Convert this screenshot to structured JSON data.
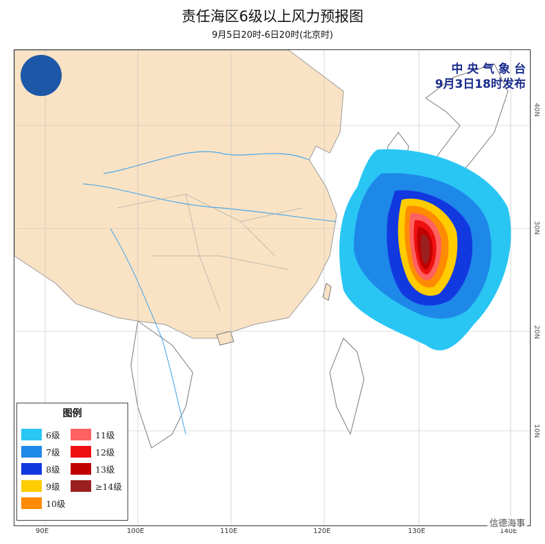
{
  "title": "责任海区6级以上风力预报图",
  "subtitle": "9月5日20时-6日20时(北京时)",
  "issuer": {
    "line1": "中 央 气 象 台",
    "line2": "9月3日18时发布"
  },
  "legend": {
    "title": "图例",
    "items": [
      {
        "label": "6级",
        "color": "#29c6f4"
      },
      {
        "label": "7级",
        "color": "#1e88e8"
      },
      {
        "label": "8级",
        "color": "#1238e0"
      },
      {
        "label": "9级",
        "color": "#ffcc00"
      },
      {
        "label": "10级",
        "color": "#ff8c00"
      },
      {
        "label": "11级",
        "color": "#ff6060"
      },
      {
        "label": "12级",
        "color": "#ee1010"
      },
      {
        "label": "13级",
        "color": "#c00000"
      },
      {
        "label": "≥14级",
        "color": "#9a2020"
      }
    ]
  },
  "longitudes": [
    "90E",
    "100E",
    "110E",
    "120E",
    "130E",
    "140E"
  ],
  "latitudes": [
    "40N",
    "30N",
    "20N",
    "10N"
  ],
  "watermark": "信德海事",
  "colors": {
    "land": "#fae3c4",
    "sea": "#ffffff",
    "river": "#4aa8e8",
    "border": "#aaaaaa",
    "issuer_text": "#1a2b8c"
  }
}
